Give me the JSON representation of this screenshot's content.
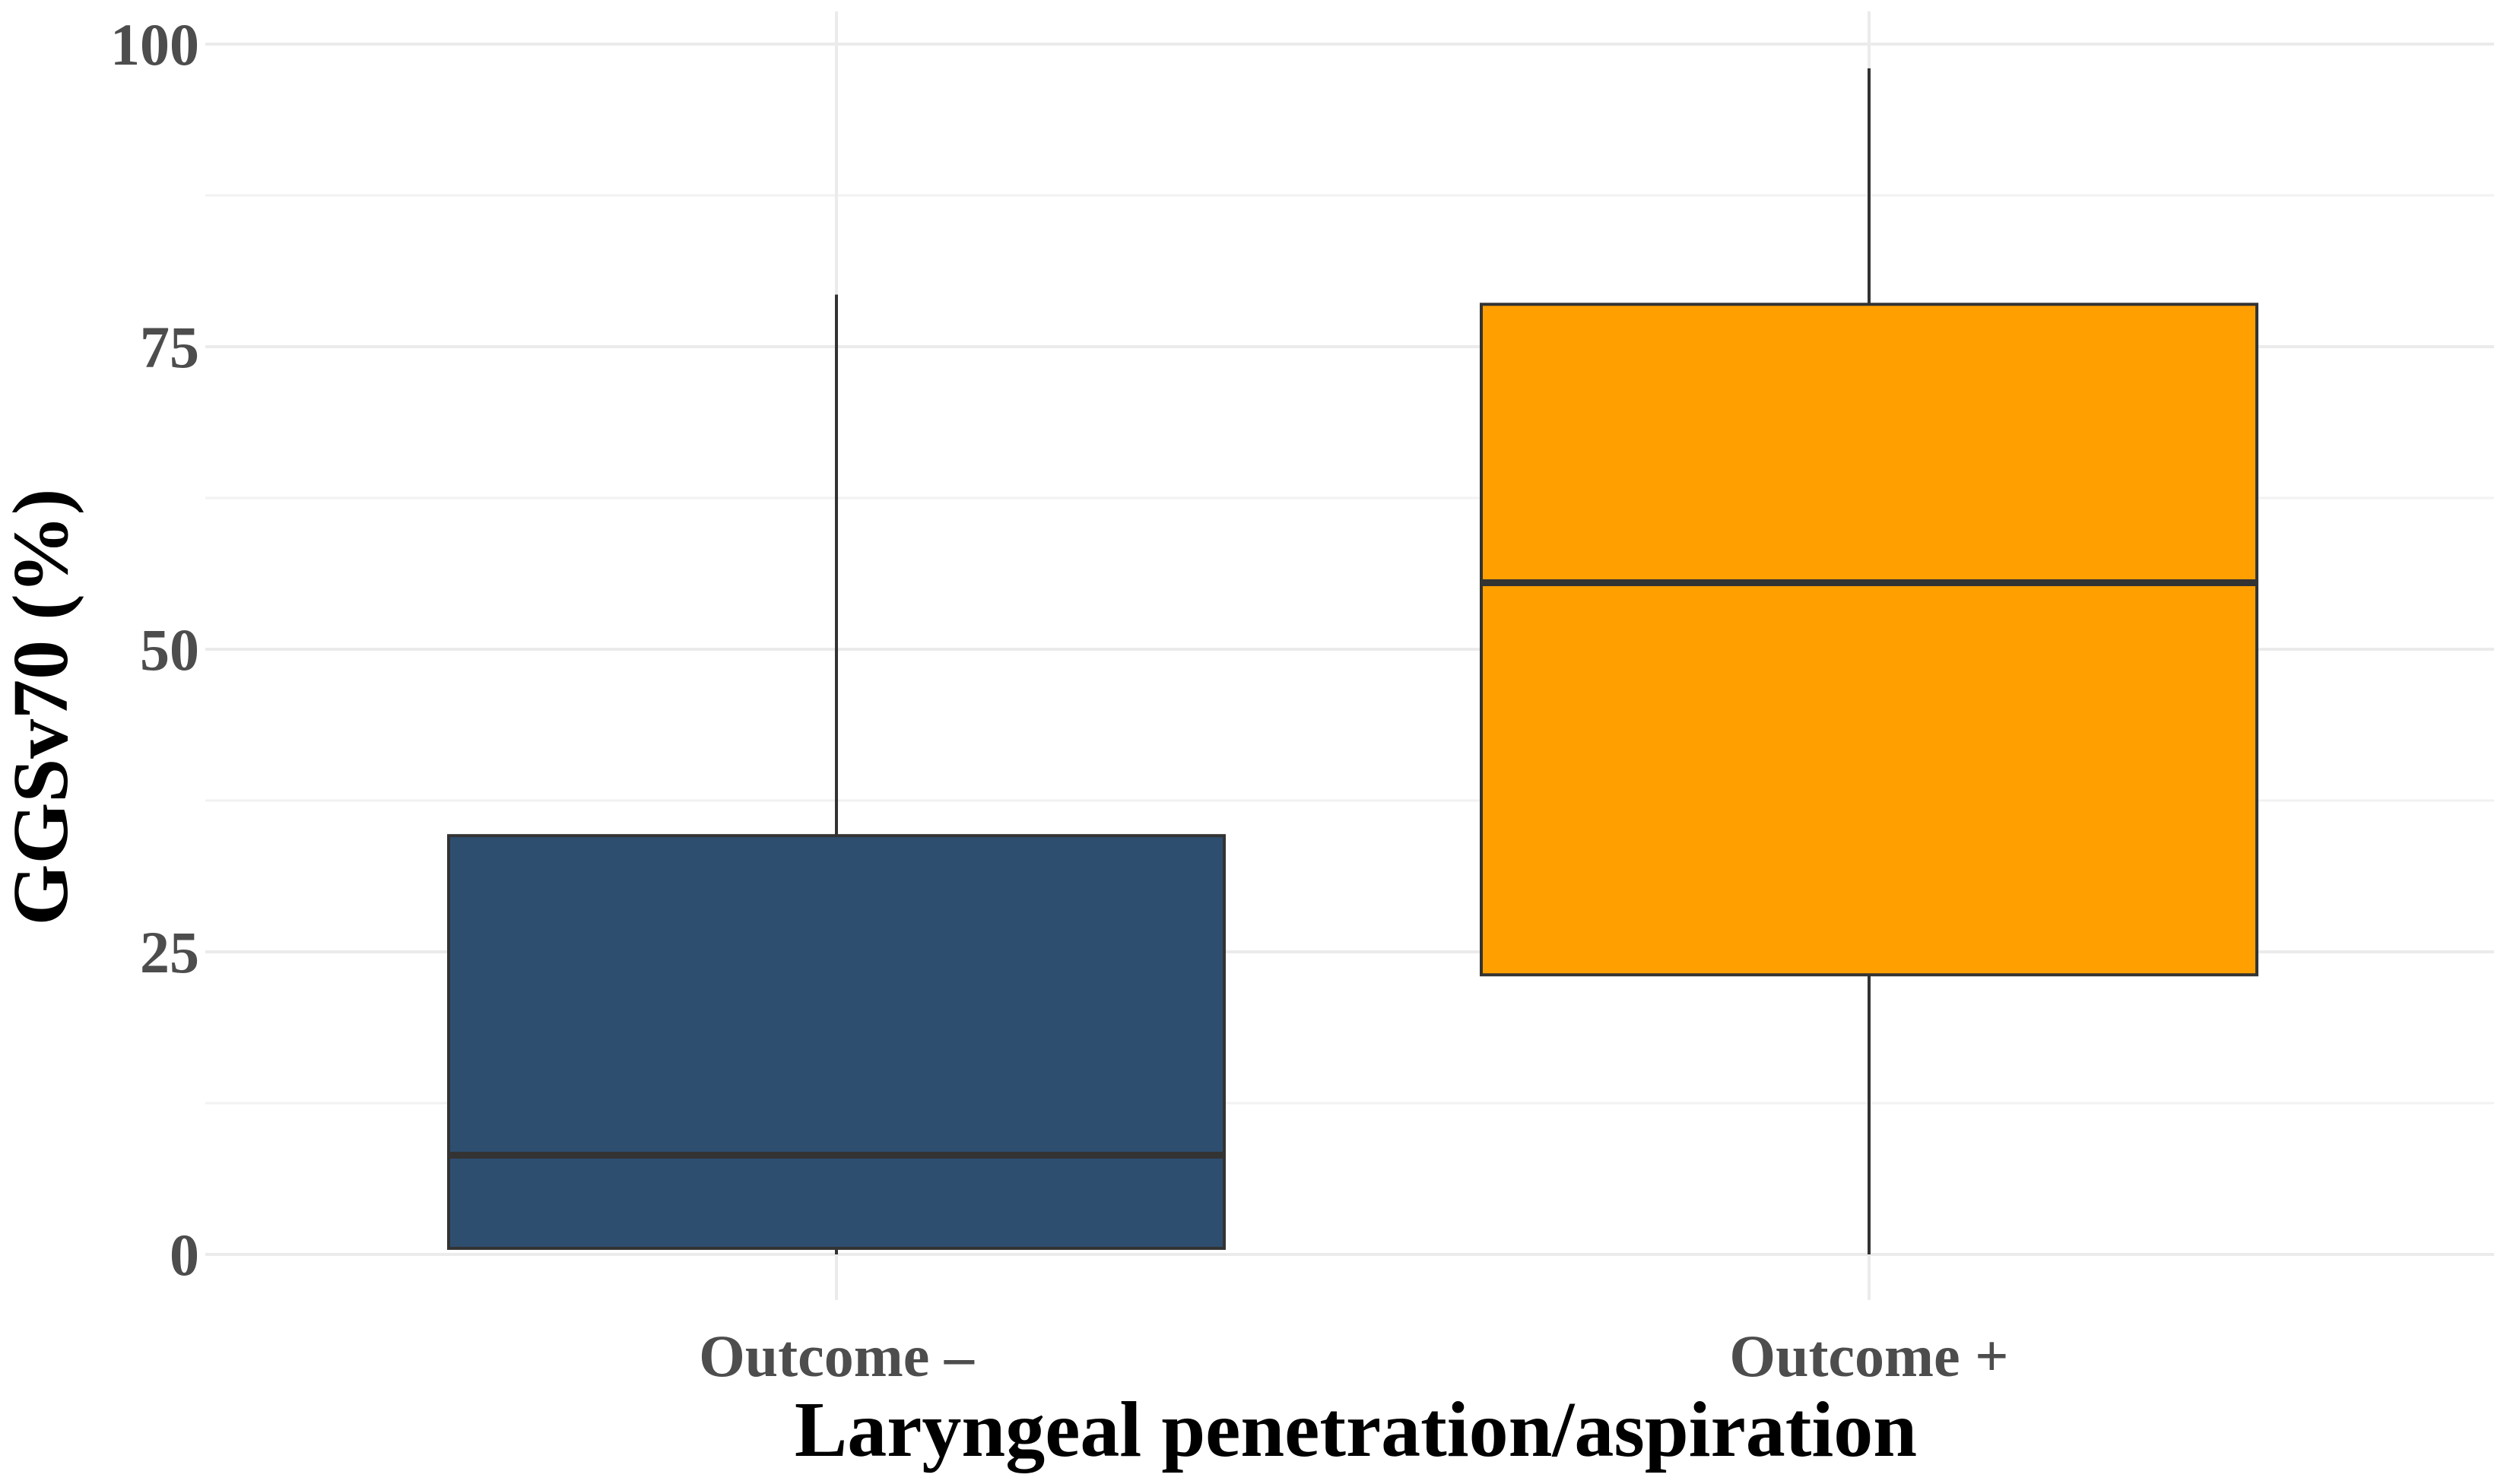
{
  "chart_data": {
    "type": "box",
    "xlabel": "Laryngeal penetration/aspiration",
    "ylabel": "GGSv70 (%)",
    "ylim": [
      -3,
      101
    ],
    "yticks": [
      0,
      25,
      50,
      75,
      100
    ],
    "ytick_labels": [
      "0",
      "25",
      "50",
      "75",
      "100"
    ],
    "grid": true,
    "categories": [
      "Outcome –",
      "Outcome +"
    ],
    "boxes": [
      {
        "category": "Outcome –",
        "whisker_low": 0,
        "q1": 0.5,
        "median": 8.2,
        "q3": 34.6,
        "whisker_high": 79.3,
        "color": "#2e4e6f"
      },
      {
        "category": "Outcome +",
        "whisker_low": 0,
        "q1": 23.1,
        "median": 55.5,
        "q3": 78.5,
        "whisker_high": 98,
        "color": "#ffa000"
      }
    ]
  }
}
